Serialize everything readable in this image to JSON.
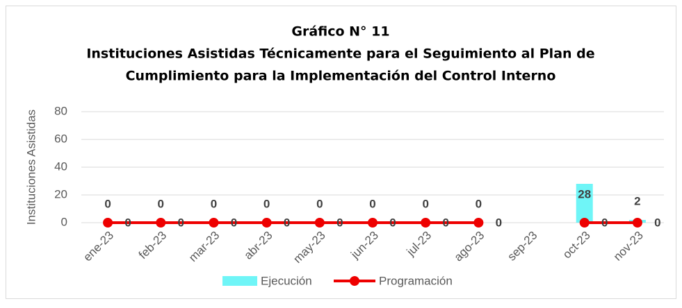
{
  "chart_data": {
    "type": "bar_line",
    "title": "Gráfico N° 11",
    "subtitle": [
      "Instituciones Asistidas Técnicamente para el Seguimiento al Plan de",
      "Cumplimiento para la Implementación del Control Interno"
    ],
    "ylabel": "Instituciones Asistidas",
    "categories": [
      "ene-23",
      "feb-23",
      "mar-23",
      "abr-23",
      "may-23",
      "jun-23",
      "jul-23",
      "ago-23",
      "sep-23",
      "oct-23",
      "nov-23"
    ],
    "series": [
      {
        "name": "Ejecución",
        "color": "#6ff5f7",
        "kind": "bar",
        "values": [
          0,
          0,
          0,
          0,
          0,
          0,
          0,
          0,
          null,
          28,
          2
        ]
      },
      {
        "name": "Programación",
        "color": "#ee0000",
        "kind": "line",
        "values": [
          0,
          0,
          0,
          0,
          0,
          0,
          0,
          0,
          null,
          0,
          0
        ]
      }
    ],
    "ylim": [
      0,
      80
    ],
    "yticks": [
      0,
      20,
      40,
      60,
      80
    ],
    "grid": true,
    "legend": "bottom"
  }
}
